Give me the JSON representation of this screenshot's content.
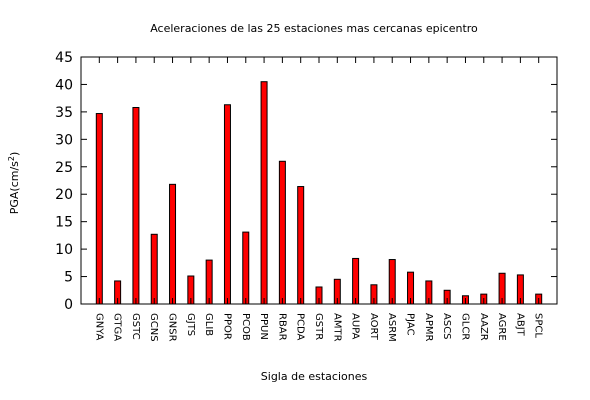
{
  "chart_data": {
    "type": "bar",
    "title": "Aceleraciones de las 25 estaciones mas cercanas epicentro",
    "xlabel": "Sigla de estaciones",
    "ylabel_base": "PGA(cm/s",
    "ylabel_sup": "2",
    "ylabel_close": ")",
    "ylim": [
      0,
      45
    ],
    "yticks": [
      0,
      5,
      10,
      15,
      20,
      25,
      30,
      35,
      40,
      45
    ],
    "grid": false,
    "bar_color": "#ff0000",
    "categories": [
      "GNYA",
      "GTGA",
      "GSTC",
      "GCNS",
      "GNSR",
      "GJTS",
      "GLIB",
      "PPOR",
      "PCOB",
      "PPUN",
      "RBAR",
      "PCDA",
      "GSTR",
      "AMTR",
      "AUPA",
      "AORT",
      "ASRM",
      "PJAC",
      "APMR",
      "ASCS",
      "GLCR",
      "AAZR",
      "AGRE",
      "ABJT",
      "SPCL"
    ],
    "values": [
      34.7,
      4.2,
      35.8,
      12.7,
      21.8,
      5.1,
      8.0,
      36.3,
      13.1,
      40.5,
      26.0,
      21.4,
      3.1,
      4.5,
      8.3,
      3.5,
      8.1,
      5.8,
      4.2,
      2.5,
      1.5,
      1.8,
      5.6,
      5.3,
      1.8
    ]
  }
}
